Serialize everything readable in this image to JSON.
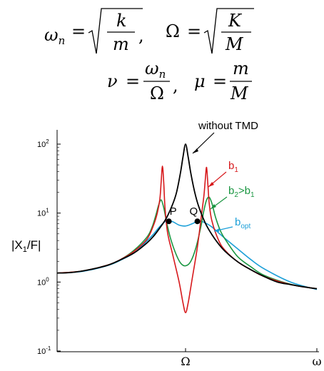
{
  "equations": {
    "line1_omega_n": "ω",
    "line1_omega_n_sub": "n",
    "line1_k": "k",
    "line1_m": "m",
    "line1_Omega": "Ω",
    "line1_K": "K",
    "line1_M": "M",
    "line2_nu": "ν",
    "line2_omega_n": "ω",
    "line2_omega_n_sub": "n",
    "line2_Omega": "Ω",
    "line2_mu": "μ",
    "line2_m": "m",
    "line2_M": "M",
    "eq": "=",
    "comma": ","
  },
  "colors": {
    "without_tmd": "#000000",
    "b1": "#d7191c",
    "b2": "#1a9641",
    "bopt": "#1b9fd8",
    "points": "#000000"
  },
  "chart_data": {
    "type": "line",
    "title": "",
    "xlabel": "",
    "ylabel": "|X1/F|",
    "y_scale": "log",
    "ylim": [
      0.1,
      300
    ],
    "yticks": [
      "10-1",
      "100",
      "101",
      "102"
    ],
    "xticks": [
      "Ω",
      "ω"
    ],
    "grid": false,
    "legend": "none (direct labels)",
    "series": [
      {
        "name": "without TMD",
        "x": [
          0.0,
          0.1,
          0.2,
          0.3,
          0.4,
          0.5,
          0.6,
          0.7,
          0.75,
          0.8,
          0.85,
          0.9,
          0.93,
          0.96,
          0.98,
          1.0,
          1.02,
          1.04,
          1.07,
          1.1,
          1.15,
          1.2,
          1.25,
          1.3,
          1.4,
          1.5,
          1.6,
          1.7,
          1.8,
          1.9,
          2.0
        ],
        "y": [
          1.35,
          1.37,
          1.45,
          1.58,
          1.77,
          2.13,
          2.65,
          3.7,
          4.6,
          6.1,
          8.4,
          13.5,
          20,
          38,
          65,
          100,
          65,
          38,
          20,
          12.5,
          7.2,
          4.9,
          3.6,
          2.8,
          1.95,
          1.5,
          1.2,
          1.0,
          0.92,
          0.85,
          0.8
        ]
      },
      {
        "name": "b1",
        "x": [
          0.0,
          0.2,
          0.4,
          0.5,
          0.6,
          0.7,
          0.75,
          0.78,
          0.8,
          0.81,
          0.82,
          0.83,
          0.84,
          0.86,
          0.9,
          0.95,
          0.98,
          1.0,
          1.02,
          1.05,
          1.09,
          1.12,
          1.14,
          1.15,
          1.16,
          1.17,
          1.18,
          1.2,
          1.25,
          1.3,
          1.4,
          1.5,
          1.6,
          1.8,
          2.0
        ],
        "y": [
          1.35,
          1.45,
          1.78,
          2.15,
          2.8,
          4.2,
          6.6,
          10,
          16,
          28,
          48,
          28,
          12,
          5.2,
          2.5,
          1.0,
          0.5,
          0.36,
          0.5,
          1.1,
          3.2,
          9,
          18,
          30,
          46,
          26,
          14,
          7.8,
          4.1,
          2.9,
          1.95,
          1.5,
          1.2,
          0.92,
          0.8
        ]
      },
      {
        "name": "b2>b1",
        "x": [
          0.0,
          0.2,
          0.4,
          0.5,
          0.6,
          0.7,
          0.74,
          0.77,
          0.79,
          0.81,
          0.83,
          0.85,
          0.88,
          0.92,
          0.96,
          1.0,
          1.04,
          1.08,
          1.12,
          1.14,
          1.16,
          1.18,
          1.2,
          1.23,
          1.27,
          1.32,
          1.4,
          1.5,
          1.6,
          1.8,
          2.0
        ],
        "y": [
          1.35,
          1.45,
          1.78,
          2.15,
          2.9,
          4.5,
          6.3,
          9.5,
          13,
          15.5,
          12,
          7.8,
          4.5,
          2.7,
          1.9,
          1.72,
          2.0,
          3.2,
          6.8,
          11,
          15.5,
          17,
          14,
          8.5,
          5.3,
          3.7,
          2.3,
          1.65,
          1.25,
          0.93,
          0.8
        ]
      },
      {
        "name": "bopt",
        "x": [
          0.0,
          0.2,
          0.4,
          0.5,
          0.6,
          0.65,
          0.7,
          0.75,
          0.8,
          0.85,
          0.9,
          0.95,
          1.0,
          1.05,
          1.1,
          1.15,
          1.2,
          1.25,
          1.3,
          1.4,
          1.5,
          1.6,
          1.8,
          2.0
        ],
        "y": [
          1.35,
          1.43,
          1.75,
          2.1,
          2.65,
          3.2,
          3.95,
          4.95,
          6.4,
          7.7,
          7.5,
          6.7,
          6.5,
          7.0,
          7.7,
          7.2,
          6.3,
          5.2,
          4.3,
          3.0,
          2.1,
          1.55,
          1.0,
          0.78
        ]
      }
    ],
    "points": [
      {
        "label": "P",
        "x": 0.87,
        "y": 7.6
      },
      {
        "label": "Q",
        "x": 1.09,
        "y": 7.6
      }
    ],
    "annotations": {
      "without_tmd": "without TMD",
      "b1_main": "b",
      "b1_sub": "1",
      "b2_main": "b",
      "b2_sub": "2",
      "b2_gt": ">b",
      "b2_sub2": "1",
      "bopt_main": "b",
      "bopt_sub": "opt",
      "ylabel_a": "|X",
      "ylabel_sub": "1",
      "ylabel_b": "/F|",
      "ytick_base": "10",
      "ytick_exp": [
        "-1",
        "0",
        "1",
        "2"
      ]
    }
  }
}
